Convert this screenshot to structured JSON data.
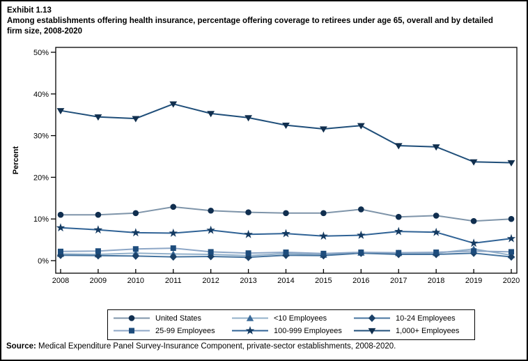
{
  "title": {
    "exhibit": "Exhibit 1.13",
    "text": "Among establishments offering health insurance, percentage offering coverage to retirees under age 65, overall and by detailed firm size, 2008-2020"
  },
  "source": {
    "label": "Source:",
    "text": " Medical Expenditure Panel Survey-Insurance Component, private-sector establishments, 2008-2020."
  },
  "chart_data": {
    "type": "line",
    "title": "Among establishments offering health insurance, percentage offering coverage to retirees under age 65, overall and by detailed firm size, 2008-2020",
    "xlabel": "",
    "ylabel": "Percent",
    "ylim": [
      0,
      50
    ],
    "yticks": [
      "0%",
      "10%",
      "20%",
      "30%",
      "40%",
      "50%"
    ],
    "grid": false,
    "legend_position": "bottom",
    "x": [
      2008,
      2009,
      2010,
      2011,
      2012,
      2013,
      2014,
      2015,
      2016,
      2017,
      2018,
      2019,
      2020
    ],
    "series": [
      {
        "name": "United States",
        "marker": "circle",
        "marker_color": "#102e4f",
        "line_color": "#7e94a9",
        "values": [
          11.0,
          11.0,
          11.4,
          12.9,
          12.0,
          11.6,
          11.4,
          11.4,
          12.3,
          10.5,
          10.8,
          9.5,
          10.0
        ]
      },
      {
        "name": "<10 Employees",
        "marker": "triangle-up",
        "marker_color": "#3a6a99",
        "line_color": "#92b0ca",
        "values": [
          1.6,
          1.5,
          1.8,
          1.6,
          1.5,
          1.2,
          1.7,
          1.4,
          1.9,
          1.8,
          1.8,
          2.8,
          1.3
        ]
      },
      {
        "name": "10-24 Employees",
        "marker": "diamond",
        "marker_color": "#1b4168",
        "line_color": "#46749f",
        "values": [
          1.3,
          1.2,
          1.1,
          0.9,
          1.0,
          0.8,
          1.3,
          1.2,
          1.8,
          1.5,
          1.5,
          1.8,
          0.9
        ]
      },
      {
        "name": "25-99 Employees",
        "marker": "square",
        "marker_color": "#1d4c7c",
        "line_color": "#8ca6c6",
        "values": [
          2.2,
          2.3,
          2.8,
          3.0,
          2.1,
          1.8,
          2.0,
          1.7,
          2.0,
          1.9,
          2.0,
          2.3,
          2.1
        ]
      },
      {
        "name": "100-999 Employees",
        "marker": "star",
        "marker_color": "#143a61",
        "line_color": "#2f6295",
        "values": [
          7.9,
          7.4,
          6.7,
          6.6,
          7.3,
          6.3,
          6.5,
          5.9,
          6.1,
          7.0,
          6.8,
          4.2,
          5.3
        ]
      },
      {
        "name": "1,000+ Employees",
        "marker": "triangle-down",
        "marker_color": "#112f4e",
        "line_color": "#1f4e79",
        "values": [
          36.0,
          34.5,
          34.1,
          37.6,
          35.3,
          34.3,
          32.5,
          31.6,
          32.4,
          27.6,
          27.3,
          23.7,
          23.5
        ]
      }
    ]
  }
}
